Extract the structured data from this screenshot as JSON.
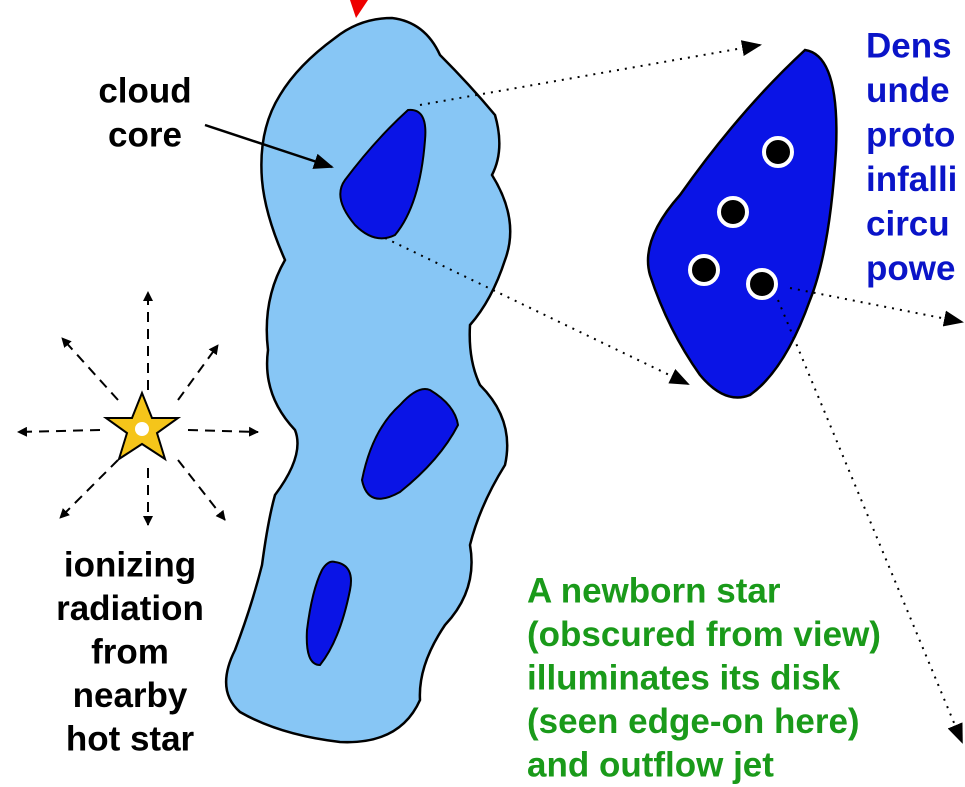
{
  "cloud_core": {
    "lines": [
      "cloud",
      "core"
    ]
  },
  "ionizing": {
    "lines": [
      "ionizing",
      "radiation",
      "from",
      "nearby",
      "hot star"
    ]
  },
  "newborn": {
    "lines": [
      "A newborn star",
      "(obscured from view)",
      "illuminates its disk",
      "(seen edge-on here)",
      "and outflow jet"
    ]
  },
  "dense": {
    "lines": [
      "Dens",
      "unde",
      "proto",
      "infalli",
      "circu",
      "powe"
    ]
  }
}
